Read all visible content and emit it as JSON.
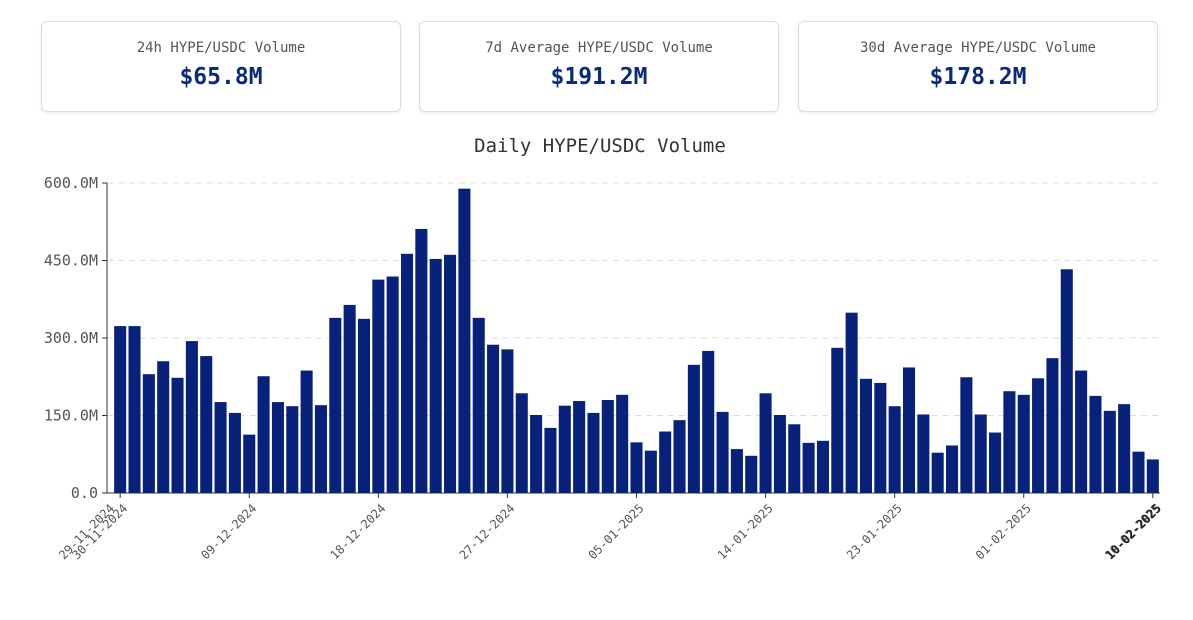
{
  "cards": [
    {
      "label": "24h HYPE/USDC Volume",
      "value": "$65.8M"
    },
    {
      "label": "7d Average HYPE/USDC Volume",
      "value": "$191.2M"
    },
    {
      "label": "30d Average HYPE/USDC Volume",
      "value": "$178.2M"
    }
  ],
  "chart_data": {
    "type": "bar",
    "title": "Daily HYPE/USDC Volume",
    "color": "#08217a",
    "grid": true,
    "categories": [
      "30-11-2024",
      null,
      null,
      null,
      null,
      null,
      null,
      null,
      null,
      "09-12-2024",
      null,
      null,
      null,
      null,
      null,
      null,
      null,
      null,
      "18-12-2024",
      null,
      null,
      null,
      null,
      null,
      null,
      null,
      null,
      "27-12-2024",
      null,
      null,
      null,
      null,
      null,
      null,
      null,
      null,
      "05-01-2025",
      null,
      null,
      null,
      null,
      null,
      null,
      null,
      null,
      "14-01-2025",
      null,
      null,
      null,
      null,
      null,
      null,
      null,
      null,
      "23-01-2025",
      null,
      null,
      null,
      null,
      null,
      null,
      null,
      null,
      "01-02-2025",
      null,
      null,
      null,
      null,
      null,
      null,
      null,
      null,
      "10-02-2025"
    ],
    "xlim_labels": [
      "29-11-2024",
      "10-02-2025"
    ],
    "values": [
      323,
      323,
      230,
      255,
      223,
      294,
      265,
      176,
      155,
      113,
      226,
      176,
      168,
      237,
      170,
      339,
      364,
      337,
      413,
      419,
      463,
      511,
      453,
      461,
      589,
      339,
      287,
      278,
      193,
      151,
      126,
      169,
      178,
      155,
      180,
      190,
      98,
      82,
      119,
      141,
      248,
      275,
      157,
      85,
      72,
      193,
      151,
      133,
      97,
      101,
      281,
      349,
      221,
      213,
      168,
      243,
      152,
      78,
      92,
      224,
      152,
      117,
      197,
      190,
      222,
      261,
      433,
      237,
      188,
      159,
      172,
      80,
      65
    ],
    "ylim": [
      0,
      600
    ],
    "yticks": [
      {
        "value": 0,
        "label": "0.0"
      },
      {
        "value": 150,
        "label": "150.0M"
      },
      {
        "value": 300,
        "label": "300.0M"
      },
      {
        "value": 450,
        "label": "450.0M"
      },
      {
        "value": 600,
        "label": "600.0M"
      }
    ]
  }
}
